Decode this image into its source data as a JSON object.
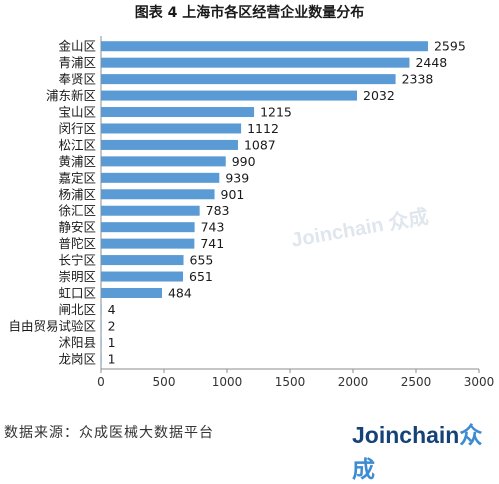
{
  "footer": {
    "source": "数据来源：众成医械大数据平台",
    "logo_main": "Joinchain",
    "logo_accent": "众成"
  },
  "watermark": "Joinchain 众成",
  "chart_data": {
    "type": "bar",
    "orientation": "horizontal",
    "title": "图表 4   上海市各区经营企业数量分布",
    "xlabel": "",
    "ylabel": "",
    "xlim": [
      0,
      3000
    ],
    "xticks": [
      0,
      500,
      1000,
      1500,
      2000,
      2500,
      3000
    ],
    "grid": false,
    "bar_color": "#5b9bd5",
    "categories": [
      "金山区",
      "青浦区",
      "奉贤区",
      "浦东新区",
      "宝山区",
      "闵行区",
      "松江区",
      "黄浦区",
      "嘉定区",
      "杨浦区",
      "徐汇区",
      "静安区",
      "普陀区",
      "长宁区",
      "崇明区",
      "虹口区",
      "闸北区",
      "自由贸易试验区",
      "沭阳县",
      "龙岗区"
    ],
    "values": [
      2595,
      2448,
      2338,
      2032,
      1215,
      1112,
      1087,
      990,
      939,
      901,
      783,
      743,
      741,
      655,
      651,
      484,
      4,
      2,
      1,
      1
    ]
  }
}
